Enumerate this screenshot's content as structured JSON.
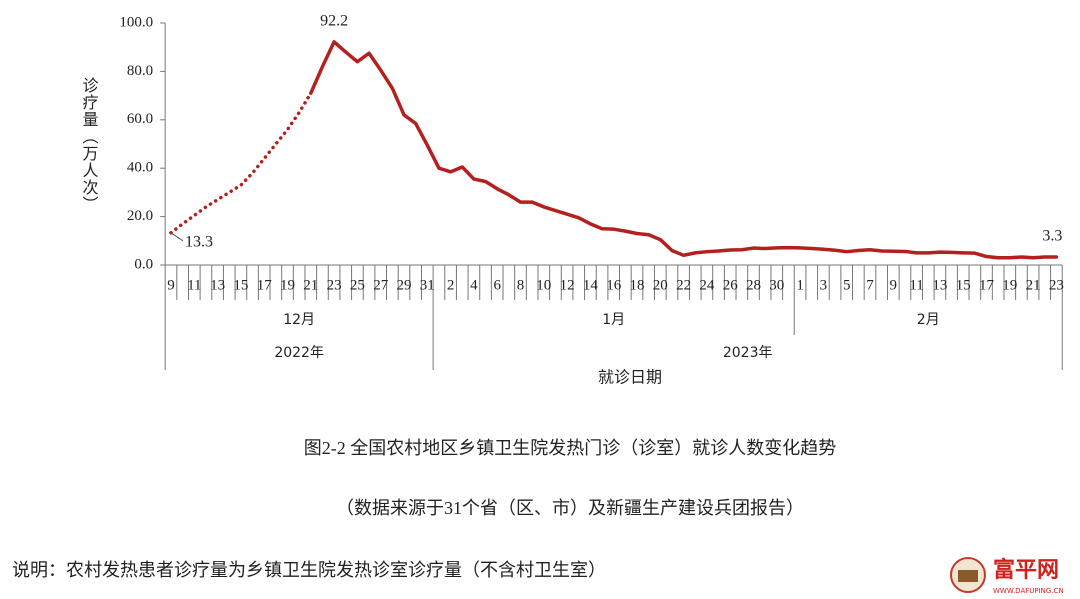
{
  "chart_data": {
    "type": "line",
    "title": "图2-2 全国农村地区乡镇卫生院发热门诊（诊室）就诊人数变化趋势",
    "subtitle": "（数据来源于31个省（区、市）及新疆生产建设兵团报告）",
    "note": "说明：农村发热患者诊疗量为乡镇卫生院发热诊室诊疗量（不含村卫生室）",
    "y_label": "诊疗量（万人次）",
    "x_label": "就诊日期",
    "categories": [
      "9",
      null,
      "11",
      null,
      "13",
      null,
      "15",
      null,
      "17",
      null,
      "19",
      null,
      "21",
      null,
      "23",
      null,
      "25",
      null,
      "27",
      null,
      "29",
      null,
      "31",
      null,
      "2",
      null,
      "4",
      null,
      "6",
      null,
      "8",
      null,
      "10",
      null,
      "12",
      null,
      "14",
      null,
      "16",
      null,
      "18",
      null,
      "20",
      null,
      "22",
      null,
      "24",
      null,
      "26",
      null,
      "28",
      null,
      "30",
      null,
      "1",
      null,
      "3",
      null,
      "5",
      null,
      "7",
      null,
      "9",
      null,
      "11",
      null,
      "13",
      null,
      "15",
      null,
      "17",
      null,
      "19",
      null,
      "21",
      null,
      "23"
    ],
    "months": [
      {
        "label": "12月",
        "count": 23
      },
      {
        "label": "1月",
        "count": 31
      },
      {
        "label": "2月",
        "count": 23
      }
    ],
    "years": [
      {
        "label": "2022年",
        "months": 1
      },
      {
        "label": "2023年",
        "months": 2
      }
    ],
    "series": [
      {
        "style": "dotted",
        "color": "#b3201e",
        "values": [
          13.3,
          17,
          20.5,
          24,
          27,
          30,
          33,
          38,
          44,
          50,
          56,
          63,
          71,
          null,
          null,
          null,
          null,
          null,
          null,
          null,
          null,
          null,
          null,
          null,
          null,
          null,
          null,
          null,
          null,
          null,
          null,
          null,
          null,
          null,
          null,
          null,
          null,
          null,
          null,
          null,
          null,
          null,
          null,
          null,
          null,
          null,
          null,
          null,
          null,
          null,
          null,
          null,
          null,
          null,
          null,
          null,
          null,
          null,
          null,
          null,
          null,
          null,
          null,
          null,
          null,
          null,
          null,
          null,
          null,
          null,
          null,
          null,
          null,
          null,
          null,
          null,
          null
        ],
        "value_labels": [
          "13.3",
          null,
          null,
          null,
          null,
          null,
          null,
          null,
          null,
          null,
          null,
          null,
          null,
          null,
          null,
          null,
          null,
          null,
          null,
          null,
          null,
          null,
          null,
          null,
          null,
          null,
          null,
          null,
          null,
          null,
          null,
          null,
          null,
          null,
          null,
          null,
          null,
          null,
          null,
          null,
          null,
          null,
          null,
          null,
          null,
          null,
          null,
          null,
          null,
          null,
          null,
          null,
          null,
          null,
          null,
          null,
          null,
          null,
          null,
          null,
          null,
          null,
          null,
          null,
          null,
          null,
          null,
          null,
          null,
          null,
          null,
          null,
          null,
          null,
          null,
          null,
          null
        ]
      },
      {
        "style": "solid",
        "color": "#b3201e",
        "values": [
          null,
          null,
          null,
          null,
          null,
          null,
          null,
          null,
          null,
          null,
          null,
          null,
          71,
          82,
          92.2,
          88,
          84,
          87.5,
          80.5,
          73,
          62,
          58.5,
          49.5,
          40,
          38.5,
          40.5,
          35.5,
          34.5,
          31.5,
          29,
          26,
          26,
          24,
          22.5,
          21,
          19.5,
          17,
          15,
          14.8,
          14,
          13,
          12.5,
          10.5,
          6,
          4,
          5,
          5.5,
          5.8,
          6.2,
          6.3,
          7,
          6.8,
          7.1,
          7.2,
          7.1,
          6.8,
          6.5,
          6.1,
          5.5,
          6,
          6.3,
          5.8,
          5.7,
          5.6,
          5,
          5,
          5.3,
          5.2,
          5,
          4.9,
          3.5,
          3,
          3,
          3.3,
          3,
          3.3,
          3.3
        ],
        "value_labels": [
          null,
          null,
          null,
          null,
          null,
          null,
          null,
          null,
          null,
          null,
          null,
          null,
          null,
          null,
          "92.2",
          null,
          null,
          null,
          null,
          null,
          null,
          null,
          null,
          null,
          null,
          null,
          null,
          null,
          null,
          null,
          null,
          null,
          null,
          null,
          null,
          null,
          null,
          null,
          null,
          null,
          null,
          null,
          null,
          null,
          null,
          null,
          null,
          null,
          null,
          null,
          null,
          null,
          null,
          null,
          null,
          null,
          null,
          null,
          null,
          null,
          null,
          null,
          null,
          null,
          null,
          null,
          null,
          null,
          null,
          null,
          null,
          null,
          null,
          null,
          null,
          null,
          "3.3"
        ]
      }
    ],
    "ylim": [
      0,
      100
    ],
    "yticks": [
      {
        "value": 0,
        "label": "0.0"
      },
      {
        "value": 20,
        "label": "20.0"
      },
      {
        "value": 40,
        "label": "40.0"
      },
      {
        "value": 60,
        "label": "60.0"
      },
      {
        "value": 80,
        "label": "80.0"
      },
      {
        "value": 100,
        "label": "100.0"
      }
    ],
    "grid": false
  },
  "watermark": {
    "name": "富平网",
    "url": "WWW.DAFUPING.CN"
  }
}
